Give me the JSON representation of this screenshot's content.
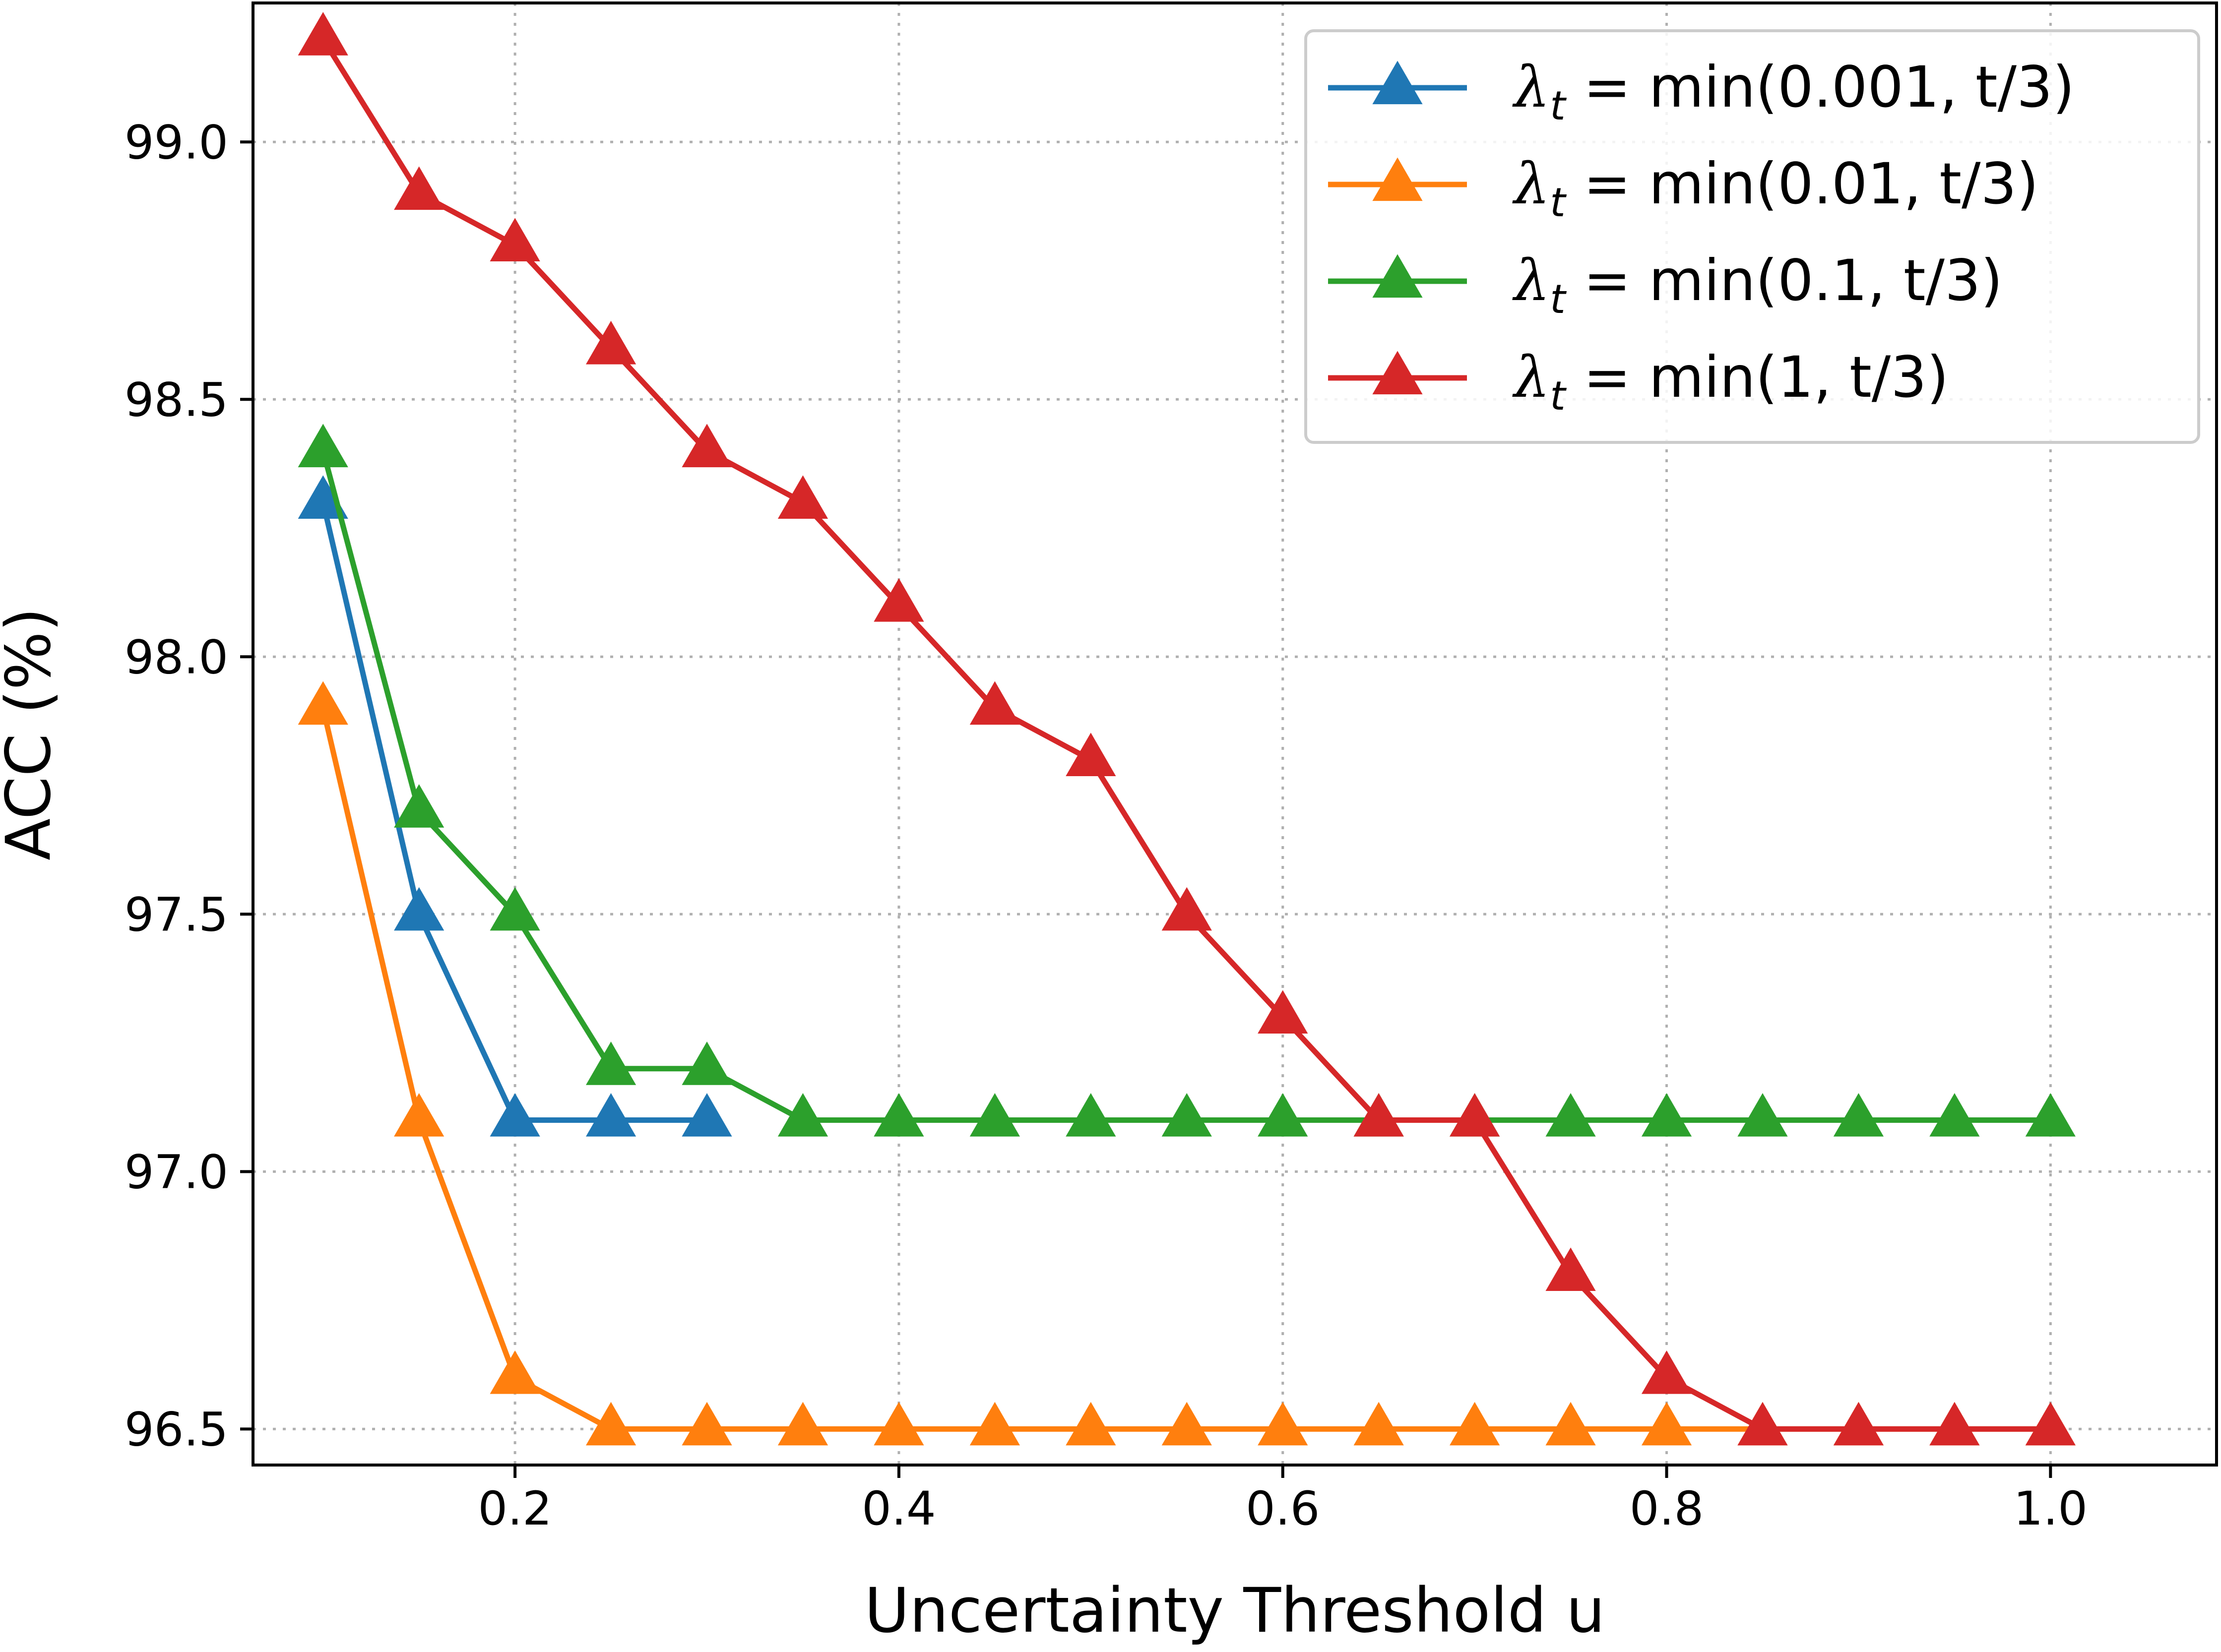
{
  "chart_data": {
    "type": "line",
    "title": "",
    "xlabel": "Uncertainty Threshold u",
    "ylabel": "ACC (%)",
    "xlim": [
      0.0635,
      1.0865
    ],
    "ylim": [
      96.43,
      99.27
    ],
    "xticks": [
      0.2,
      0.4,
      0.6,
      0.8,
      1.0
    ],
    "xtick_labels": [
      "0.2",
      "0.4",
      "0.6",
      "0.8",
      "1.0"
    ],
    "yticks": [
      96.5,
      97.0,
      97.5,
      98.0,
      98.5,
      99.0
    ],
    "ytick_labels": [
      "96.5",
      "97.0",
      "97.5",
      "98.0",
      "98.5",
      "99.0"
    ],
    "grid": true,
    "legend_position": "top-right",
    "marker": "triangle-up",
    "x": [
      0.1,
      0.15,
      0.2,
      0.25,
      0.3,
      0.35,
      0.4,
      0.45,
      0.5,
      0.55,
      0.6,
      0.65,
      0.7,
      0.75,
      0.8,
      0.85,
      0.9,
      0.95,
      1.0
    ],
    "series": [
      {
        "legend_symbol": "λ",
        "legend_subscript": "t",
        "legend_rest": " =  min(0.001, t/3)",
        "color": "#1f77b4",
        "x": [
          0.1,
          0.15,
          0.2,
          0.25,
          0.3
        ],
        "values": [
          98.3,
          97.5,
          97.1,
          97.1,
          97.1
        ]
      },
      {
        "legend_symbol": "λ",
        "legend_subscript": "t",
        "legend_rest": " =  min(0.01, t/3)",
        "color": "#ff7f0e",
        "x": [
          0.1,
          0.15,
          0.2,
          0.25,
          0.3,
          0.35,
          0.4,
          0.45,
          0.5,
          0.55,
          0.6,
          0.65,
          0.7,
          0.75,
          0.8,
          0.85,
          0.9,
          0.95,
          1.0
        ],
        "values": [
          97.9,
          97.1,
          96.6,
          96.5,
          96.5,
          96.5,
          96.5,
          96.5,
          96.5,
          96.5,
          96.5,
          96.5,
          96.5,
          96.5,
          96.5,
          96.5,
          96.5,
          96.5,
          96.5
        ]
      },
      {
        "legend_symbol": "λ",
        "legend_subscript": "t",
        "legend_rest": " =  min(0.1, t/3)",
        "color": "#2ca02c",
        "x": [
          0.1,
          0.15,
          0.2,
          0.25,
          0.3,
          0.35,
          0.4,
          0.45,
          0.5,
          0.55,
          0.6,
          0.65,
          0.7,
          0.75,
          0.8,
          0.85,
          0.9,
          0.95,
          1.0
        ],
        "values": [
          98.4,
          97.7,
          97.5,
          97.2,
          97.2,
          97.1,
          97.1,
          97.1,
          97.1,
          97.1,
          97.1,
          97.1,
          97.1,
          97.1,
          97.1,
          97.1,
          97.1,
          97.1,
          97.1
        ]
      },
      {
        "legend_symbol": "λ",
        "legend_subscript": "t",
        "legend_rest": " =  min(1, t/3)",
        "color": "#d62728",
        "x": [
          0.1,
          0.15,
          0.2,
          0.25,
          0.3,
          0.35,
          0.4,
          0.45,
          0.5,
          0.55,
          0.6,
          0.65,
          0.7,
          0.75,
          0.8,
          0.85,
          0.9,
          0.95,
          1.0
        ],
        "values": [
          99.2,
          98.9,
          98.8,
          98.6,
          98.4,
          98.3,
          98.1,
          97.9,
          97.8,
          97.5,
          97.3,
          97.1,
          97.1,
          96.8,
          96.6,
          96.5,
          96.5,
          96.5,
          96.5
        ]
      }
    ]
  }
}
